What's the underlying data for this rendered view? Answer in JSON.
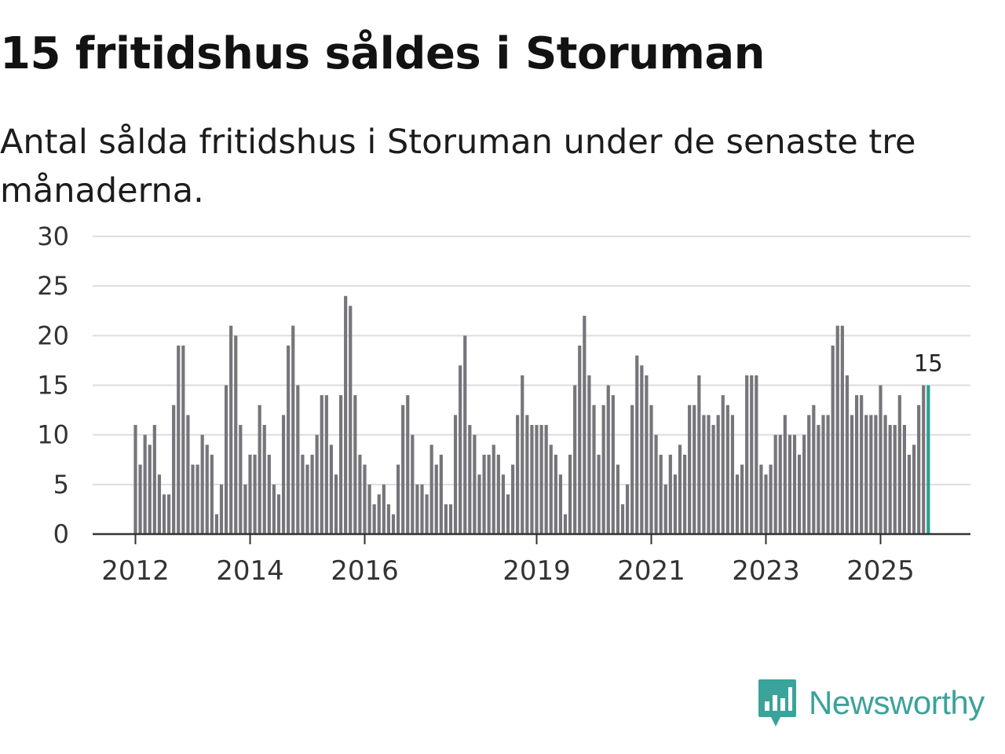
{
  "header": {
    "title": "15 fritidshus såldes i Storuman",
    "subtitle": "Antal sålda fritidshus i Storuman under de senaste tre månaderna."
  },
  "branding": {
    "name": "Newsworthy",
    "icon": "newsworthy-logo-icon",
    "color": "#3aa39a"
  },
  "chart_data": {
    "type": "bar",
    "title": "15 fritidshus såldes i Storuman",
    "subtitle": "Antal sålda fritidshus i Storuman under de senaste tre månaderna.",
    "xlabel": "",
    "ylabel": "",
    "ylim": [
      0,
      30
    ],
    "yticks": [
      0,
      5,
      10,
      15,
      20,
      25,
      30
    ],
    "grid": true,
    "start": "2012-01",
    "xtick_labels": [
      "2012",
      "2014",
      "2016",
      "2019",
      "2021",
      "2023",
      "2025"
    ],
    "bar_color": "#76757a",
    "highlight_color": "#2a9d8f",
    "highlight_label": "15",
    "values": [
      11,
      7,
      10,
      9,
      11,
      6,
      4,
      4,
      13,
      19,
      19,
      12,
      7,
      7,
      10,
      9,
      8,
      2,
      5,
      15,
      21,
      20,
      11,
      5,
      8,
      8,
      13,
      11,
      8,
      5,
      4,
      12,
      19,
      21,
      15,
      8,
      7,
      8,
      10,
      14,
      14,
      9,
      6,
      14,
      24,
      23,
      14,
      8,
      7,
      5,
      3,
      4,
      5,
      3,
      2,
      7,
      13,
      14,
      10,
      5,
      5,
      4,
      9,
      7,
      8,
      3,
      3,
      12,
      17,
      20,
      11,
      10,
      6,
      8,
      8,
      9,
      8,
      6,
      4,
      7,
      12,
      16,
      12,
      11,
      11,
      11,
      11,
      9,
      8,
      6,
      2,
      8,
      15,
      19,
      22,
      16,
      13,
      8,
      13,
      15,
      14,
      7,
      3,
      5,
      13,
      18,
      17,
      16,
      13,
      10,
      8,
      5,
      8,
      6,
      9,
      8,
      13,
      13,
      16,
      12,
      12,
      11,
      12,
      14,
      13,
      12,
      6,
      7,
      16,
      16,
      16,
      7,
      6,
      7,
      10,
      10,
      12,
      10,
      10,
      8,
      10,
      12,
      13,
      11,
      12,
      12,
      19,
      21,
      21,
      16,
      12,
      14,
      14,
      12,
      12,
      12,
      15,
      12,
      11,
      11,
      14,
      11,
      8,
      9,
      13,
      15,
      15
    ]
  }
}
